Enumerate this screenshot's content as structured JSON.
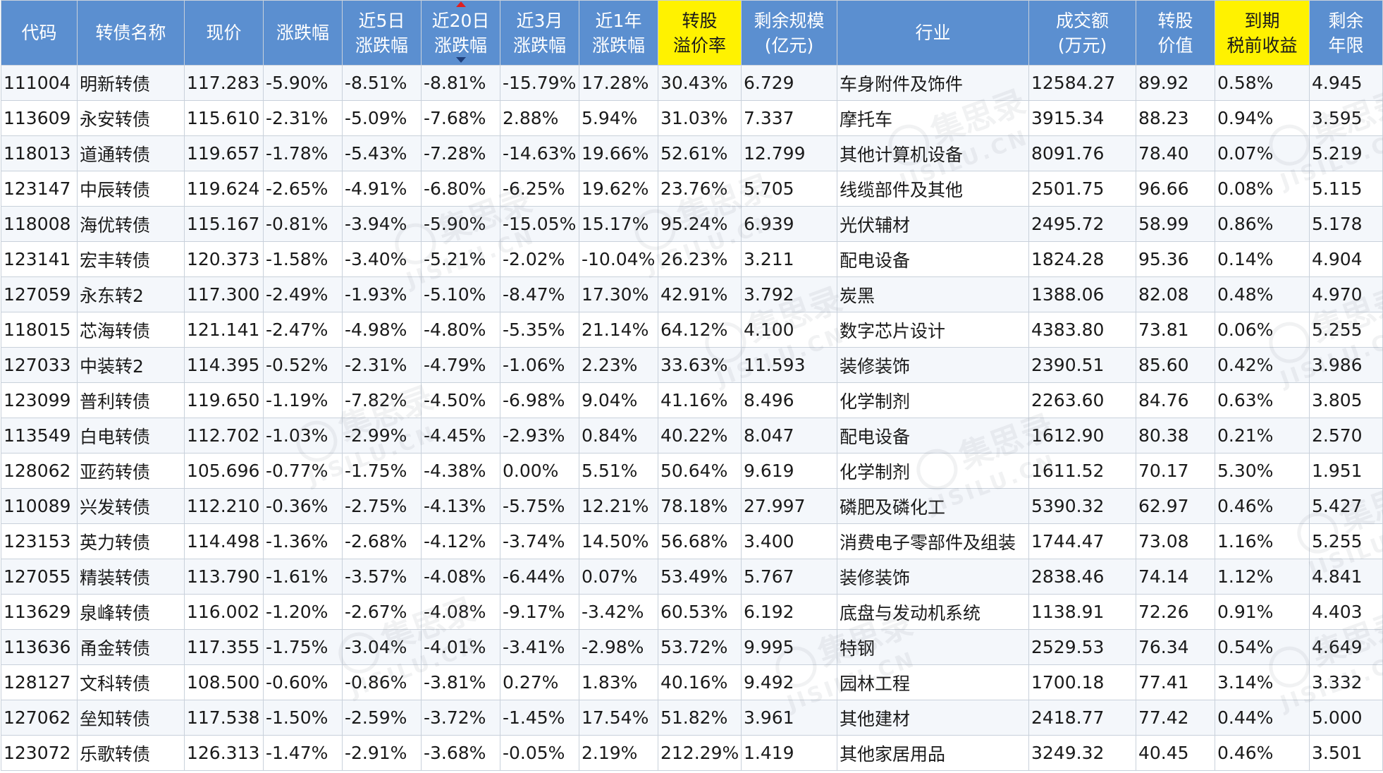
{
  "watermark": {
    "text": "集思录",
    "sub": "JISILU.CN"
  },
  "columns": [
    {
      "key": "code",
      "label_lines": [
        "代码"
      ]
    },
    {
      "key": "name",
      "label_lines": [
        "转债名称"
      ]
    },
    {
      "key": "price",
      "label_lines": [
        "现价"
      ]
    },
    {
      "key": "change",
      "label_lines": [
        "涨跌幅"
      ]
    },
    {
      "key": "chg5d",
      "label_lines": [
        "近5日",
        "涨跌幅"
      ]
    },
    {
      "key": "chg20d",
      "label_lines": [
        "近20日",
        "涨跌幅"
      ]
    },
    {
      "key": "chg3m",
      "label_lines": [
        "近3月",
        "涨跌幅"
      ]
    },
    {
      "key": "chg1y",
      "label_lines": [
        "近1年",
        "涨跌幅"
      ]
    },
    {
      "key": "premium",
      "label_lines": [
        "转股",
        "溢价率"
      ]
    },
    {
      "key": "scale",
      "label_lines": [
        "剩余规模",
        "(亿元)"
      ]
    },
    {
      "key": "industry",
      "label_lines": [
        "行业"
      ]
    },
    {
      "key": "volume",
      "label_lines": [
        "成交额",
        "(万元)"
      ]
    },
    {
      "key": "conv_value",
      "label_lines": [
        "转股",
        "价值"
      ]
    },
    {
      "key": "ytm",
      "label_lines": [
        "到期",
        "税前收益"
      ]
    },
    {
      "key": "years",
      "label_lines": [
        "剩余",
        "年限"
      ]
    }
  ],
  "highlighted_columns": [
    "premium",
    "ytm"
  ],
  "sorted_column": "chg20d",
  "sort_direction": "descending",
  "colors": {
    "header_bg": "#5b8fd0",
    "header_highlight": "#fff200",
    "code_link": "#1a56a8",
    "name_highlight": "#f07800",
    "up": "#e0101a",
    "down": "#0a8a1e"
  },
  "rows": [
    {
      "code": "111004",
      "name": "明新转债",
      "name_highlight": true,
      "price": "117.283",
      "change": "-5.90%",
      "chg5d": "-8.51%",
      "chg20d": "-8.81%",
      "chg3m": "-15.79%",
      "chg1y": "17.28%",
      "premium": "30.43%",
      "scale": "6.729",
      "industry": "车身附件及饰件",
      "volume": "12584.27",
      "conv_value": "89.92",
      "ytm": "0.58%",
      "years": "4.945"
    },
    {
      "code": "113609",
      "name": "永安转债",
      "name_highlight": false,
      "price": "115.610",
      "change": "-2.31%",
      "chg5d": "-5.09%",
      "chg20d": "-7.68%",
      "chg3m": "2.88%",
      "chg1y": "5.94%",
      "premium": "31.03%",
      "scale": "7.337",
      "industry": "摩托车",
      "volume": "3915.34",
      "conv_value": "88.23",
      "ytm": "0.94%",
      "years": "3.595"
    },
    {
      "code": "118013",
      "name": "道通转债",
      "name_highlight": false,
      "price": "119.657",
      "change": "-1.78%",
      "chg5d": "-5.43%",
      "chg20d": "-7.28%",
      "chg3m": "-14.63%",
      "chg1y": "19.66%",
      "premium": "52.61%",
      "scale": "12.799",
      "industry": "其他计算机设备",
      "volume": "8091.76",
      "conv_value": "78.40",
      "ytm": "0.07%",
      "years": "5.219"
    },
    {
      "code": "123147",
      "name": "中辰转债",
      "name_highlight": false,
      "price": "119.624",
      "change": "-2.65%",
      "chg5d": "-4.91%",
      "chg20d": "-6.80%",
      "chg3m": "-6.25%",
      "chg1y": "19.62%",
      "premium": "23.76%",
      "scale": "5.705",
      "industry": "线缆部件及其他",
      "volume": "2501.75",
      "conv_value": "96.66",
      "ytm": "0.08%",
      "years": "5.115"
    },
    {
      "code": "118008",
      "name": "海优转债",
      "name_highlight": false,
      "price": "115.167",
      "change": "-0.81%",
      "chg5d": "-3.94%",
      "chg20d": "-5.90%",
      "chg3m": "-15.05%",
      "chg1y": "15.17%",
      "premium": "95.24%",
      "scale": "6.939",
      "industry": "光伏辅材",
      "volume": "2495.72",
      "conv_value": "58.99",
      "ytm": "0.86%",
      "years": "5.178"
    },
    {
      "code": "123141",
      "name": "宏丰转债",
      "name_highlight": false,
      "price": "120.373",
      "change": "-1.58%",
      "chg5d": "-3.40%",
      "chg20d": "-5.21%",
      "chg3m": "-2.02%",
      "chg1y": "-10.04%",
      "premium": "26.23%",
      "scale": "3.211",
      "industry": "配电设备",
      "volume": "1824.28",
      "conv_value": "95.36",
      "ytm": "0.14%",
      "years": "4.904"
    },
    {
      "code": "127059",
      "name": "永东转2",
      "name_highlight": false,
      "price": "117.300",
      "change": "-2.49%",
      "chg5d": "-1.93%",
      "chg20d": "-5.10%",
      "chg3m": "-8.47%",
      "chg1y": "17.30%",
      "premium": "42.91%",
      "scale": "3.792",
      "industry": "炭黑",
      "volume": "1388.06",
      "conv_value": "82.08",
      "ytm": "0.48%",
      "years": "4.970"
    },
    {
      "code": "118015",
      "name": "芯海转债",
      "name_highlight": true,
      "price": "121.141",
      "change": "-2.47%",
      "chg5d": "-4.98%",
      "chg20d": "-4.80%",
      "chg3m": "-5.35%",
      "chg1y": "21.14%",
      "premium": "64.12%",
      "scale": "4.100",
      "industry": "数字芯片设计",
      "volume": "4383.80",
      "conv_value": "73.81",
      "ytm": "0.06%",
      "years": "5.255"
    },
    {
      "code": "127033",
      "name": "中装转2",
      "name_highlight": false,
      "price": "114.395",
      "change": "-0.52%",
      "chg5d": "-2.31%",
      "chg20d": "-4.79%",
      "chg3m": "-1.06%",
      "chg1y": "2.23%",
      "premium": "33.63%",
      "scale": "11.593",
      "industry": "装修装饰",
      "volume": "2390.51",
      "conv_value": "85.60",
      "ytm": "0.42%",
      "years": "3.986"
    },
    {
      "code": "123099",
      "name": "普利转债",
      "name_highlight": false,
      "price": "119.650",
      "change": "-1.19%",
      "chg5d": "-7.82%",
      "chg20d": "-4.50%",
      "chg3m": "-6.98%",
      "chg1y": "9.04%",
      "premium": "41.16%",
      "scale": "8.496",
      "industry": "化学制剂",
      "volume": "2263.60",
      "conv_value": "84.76",
      "ytm": "0.63%",
      "years": "3.805"
    },
    {
      "code": "113549",
      "name": "白电转债",
      "name_highlight": false,
      "price": "112.702",
      "change": "-1.03%",
      "chg5d": "-2.99%",
      "chg20d": "-4.45%",
      "chg3m": "-2.93%",
      "chg1y": "0.84%",
      "premium": "40.22%",
      "scale": "8.047",
      "industry": "配电设备",
      "volume": "1612.90",
      "conv_value": "80.38",
      "ytm": "0.21%",
      "years": "2.570"
    },
    {
      "code": "128062",
      "name": "亚药转债",
      "name_highlight": false,
      "price": "105.696",
      "change": "-0.77%",
      "chg5d": "-1.75%",
      "chg20d": "-4.38%",
      "chg3m": "0.00%",
      "chg1y": "5.51%",
      "premium": "50.64%",
      "scale": "9.619",
      "industry": "化学制剂",
      "volume": "1611.52",
      "conv_value": "70.17",
      "ytm": "5.30%",
      "years": "1.951"
    },
    {
      "code": "110089",
      "name": "兴发转债",
      "name_highlight": false,
      "price": "112.210",
      "change": "-0.36%",
      "chg5d": "-2.75%",
      "chg20d": "-4.13%",
      "chg3m": "-5.75%",
      "chg1y": "12.21%",
      "premium": "78.18%",
      "scale": "27.997",
      "industry": "磷肥及磷化工",
      "volume": "5390.32",
      "conv_value": "62.97",
      "ytm": "0.46%",
      "years": "5.427"
    },
    {
      "code": "123153",
      "name": "英力转债",
      "name_highlight": false,
      "price": "114.498",
      "change": "-1.36%",
      "chg5d": "-2.68%",
      "chg20d": "-4.12%",
      "chg3m": "-3.74%",
      "chg1y": "14.50%",
      "premium": "56.68%",
      "scale": "3.400",
      "industry": "消费电子零部件及组装",
      "volume": "1744.47",
      "conv_value": "73.08",
      "ytm": "1.16%",
      "years": "5.255"
    },
    {
      "code": "127055",
      "name": "精装转债",
      "name_highlight": true,
      "price": "113.790",
      "change": "-1.61%",
      "chg5d": "-3.57%",
      "chg20d": "-4.08%",
      "chg3m": "-6.44%",
      "chg1y": "0.07%",
      "premium": "53.49%",
      "scale": "5.767",
      "industry": "装修装饰",
      "volume": "2838.46",
      "conv_value": "74.14",
      "ytm": "1.12%",
      "years": "4.841"
    },
    {
      "code": "113629",
      "name": "泉峰转债",
      "name_highlight": false,
      "price": "116.002",
      "change": "-1.20%",
      "chg5d": "-2.67%",
      "chg20d": "-4.08%",
      "chg3m": "-9.17%",
      "chg1y": "-3.42%",
      "premium": "60.53%",
      "scale": "6.192",
      "industry": "底盘与发动机系统",
      "volume": "1138.91",
      "conv_value": "72.26",
      "ytm": "0.91%",
      "years": "4.403"
    },
    {
      "code": "113636",
      "name": "甬金转债",
      "name_highlight": false,
      "price": "117.355",
      "change": "-1.75%",
      "chg5d": "-3.04%",
      "chg20d": "-4.01%",
      "chg3m": "-3.41%",
      "chg1y": "-2.98%",
      "premium": "53.72%",
      "scale": "9.995",
      "industry": "特钢",
      "volume": "2529.53",
      "conv_value": "76.34",
      "ytm": "0.54%",
      "years": "4.649"
    },
    {
      "code": "128127",
      "name": "文科转债",
      "name_highlight": false,
      "price": "108.500",
      "change": "-0.60%",
      "chg5d": "-0.86%",
      "chg20d": "-3.81%",
      "chg3m": "0.27%",
      "chg1y": "1.83%",
      "premium": "40.16%",
      "scale": "9.492",
      "industry": "园林工程",
      "volume": "1700.18",
      "conv_value": "77.41",
      "ytm": "3.14%",
      "years": "3.332"
    },
    {
      "code": "127062",
      "name": "垒知转债",
      "name_highlight": true,
      "price": "117.538",
      "change": "-1.50%",
      "chg5d": "-2.59%",
      "chg20d": "-3.72%",
      "chg3m": "-1.45%",
      "chg1y": "17.54%",
      "premium": "51.82%",
      "scale": "3.961",
      "industry": "其他建材",
      "volume": "2418.77",
      "conv_value": "77.42",
      "ytm": "0.44%",
      "years": "5.000"
    },
    {
      "code": "123072",
      "name": "乐歌转债",
      "name_highlight": true,
      "price": "126.313",
      "change": "-1.47%",
      "chg5d": "-2.91%",
      "chg20d": "-3.68%",
      "chg3m": "-0.05%",
      "chg1y": "2.19%",
      "premium": "212.29%",
      "scale": "1.419",
      "industry": "其他家居用品",
      "volume": "3249.32",
      "conv_value": "40.45",
      "ytm": "0.46%",
      "years": "3.501"
    }
  ]
}
